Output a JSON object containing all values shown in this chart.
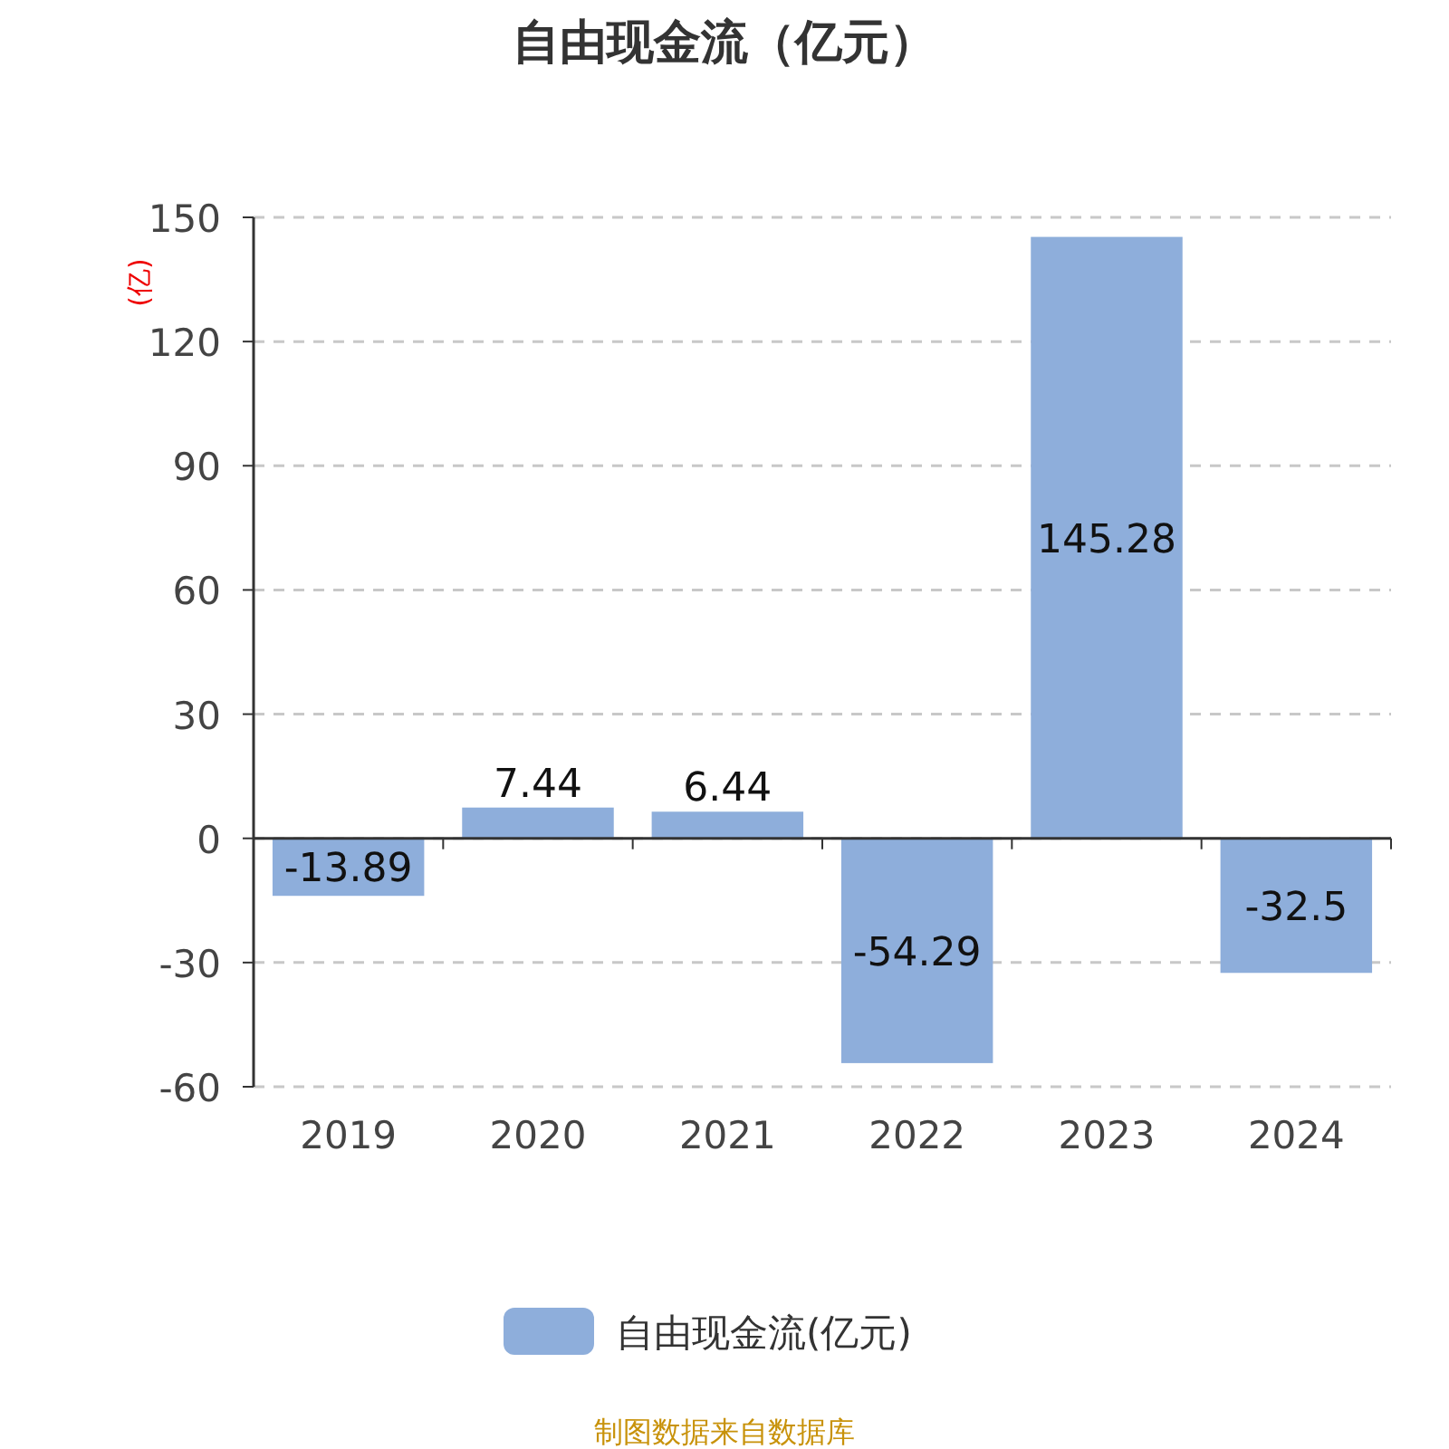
{
  "chart_data": {
    "type": "bar",
    "title": "自由现金流（亿元）",
    "ylabel": "(亿)",
    "categories": [
      "2019",
      "2020",
      "2021",
      "2022",
      "2023",
      "2024"
    ],
    "series": [
      {
        "name": "自由现金流(亿元)",
        "color": "#8eaedb",
        "values": [
          -13.89,
          7.44,
          6.44,
          -54.29,
          145.28,
          -32.5
        ]
      }
    ],
    "ylim": [
      -60,
      150
    ],
    "yticks": [
      -60,
      -30,
      0,
      30,
      60,
      90,
      120,
      150
    ],
    "grid": "y",
    "data_labels": true,
    "legend": "bottom",
    "annotations": [
      "制图数据来自数据库"
    ]
  }
}
